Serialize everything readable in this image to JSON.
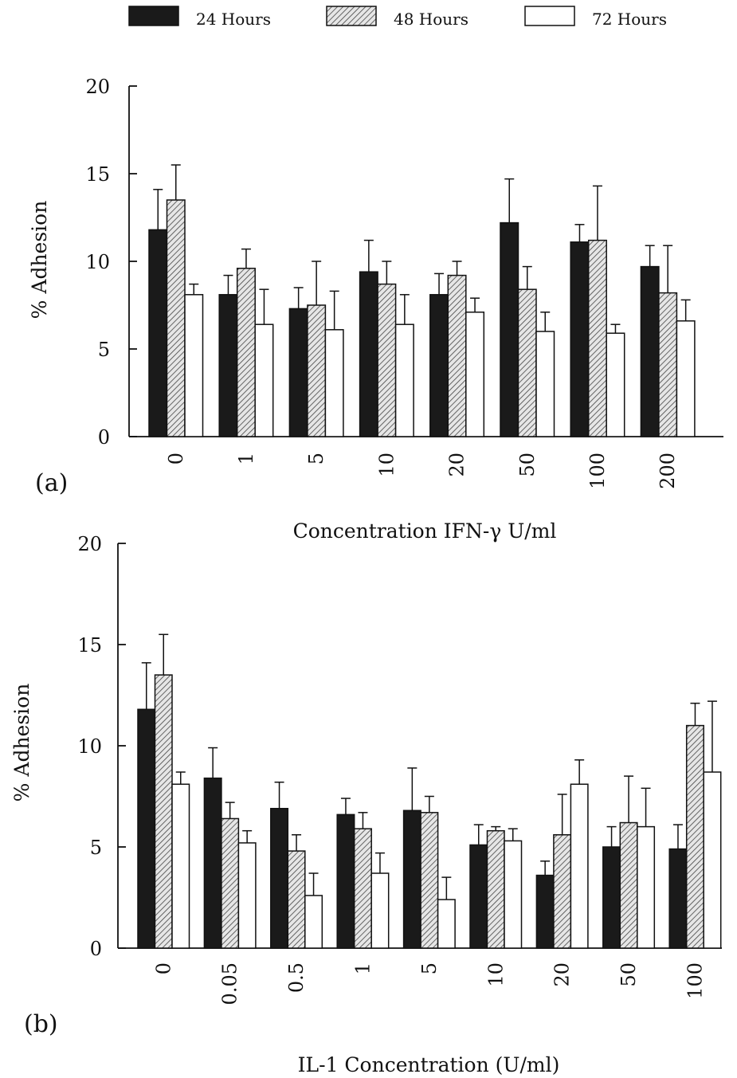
{
  "legend": [
    {
      "label": "24 Hours",
      "fill": "black"
    },
    {
      "label": "48 Hours",
      "fill": "hatched"
    },
    {
      "label": "72 Hours",
      "fill": "white"
    }
  ],
  "colors": {
    "bar_dark": "#1a1a1a",
    "bar_white": "#ffffff",
    "axis": "#111111",
    "hatch_bg": "#e6e6e6"
  },
  "chart_data": [
    {
      "type": "bar",
      "panel_label": "(a)",
      "xlabel": "Concentration IFN-γ U/ml",
      "ylabel": "% Adhesion",
      "ylim": [
        0,
        20
      ],
      "yticks": [
        0,
        5,
        10,
        15,
        20
      ],
      "categories": [
        "0",
        "1",
        "5",
        "10",
        "20",
        "50",
        "100",
        "200"
      ],
      "series": [
        {
          "name": "24 Hours",
          "values": [
            11.8,
            8.1,
            7.3,
            9.4,
            8.1,
            12.2,
            11.1,
            9.7
          ],
          "errors": [
            2.3,
            1.1,
            1.2,
            1.8,
            1.2,
            2.5,
            1.0,
            1.2
          ]
        },
        {
          "name": "48 Hours",
          "values": [
            13.5,
            9.6,
            7.5,
            8.7,
            9.2,
            8.4,
            11.2,
            8.2
          ],
          "errors": [
            2.0,
            1.1,
            2.5,
            1.3,
            0.8,
            1.3,
            3.1,
            2.7
          ]
        },
        {
          "name": "72 Hours",
          "values": [
            8.1,
            6.4,
            6.1,
            6.4,
            7.1,
            6.0,
            5.9,
            6.6
          ],
          "errors": [
            0.6,
            2.0,
            2.2,
            1.7,
            0.8,
            1.1,
            0.5,
            1.2
          ]
        }
      ]
    },
    {
      "type": "bar",
      "panel_label": "(b)",
      "xlabel": "IL-1 Concentration (U/ml)",
      "ylabel": "% Adhesion",
      "ylim": [
        0,
        20
      ],
      "yticks": [
        0,
        5,
        10,
        15,
        20
      ],
      "categories": [
        "0",
        "0.05",
        "0.5",
        "1",
        "5",
        "10",
        "20",
        "50",
        "100"
      ],
      "series": [
        {
          "name": "24 Hours",
          "values": [
            11.8,
            8.4,
            6.9,
            6.6,
            6.8,
            5.1,
            3.6,
            5.0,
            4.9
          ],
          "errors": [
            2.3,
            1.5,
            1.3,
            0.8,
            2.1,
            1.0,
            0.7,
            1.0,
            1.2
          ]
        },
        {
          "name": "48 Hours",
          "values": [
            13.5,
            6.4,
            4.8,
            5.9,
            6.7,
            5.8,
            5.6,
            6.2,
            11.0
          ],
          "errors": [
            2.0,
            0.8,
            0.8,
            0.8,
            0.8,
            0.2,
            2.0,
            2.3,
            1.1
          ]
        },
        {
          "name": "72 Hours",
          "values": [
            8.1,
            5.2,
            2.6,
            3.7,
            2.4,
            5.3,
            8.1,
            6.0,
            8.7
          ],
          "errors": [
            0.6,
            0.6,
            1.1,
            1.0,
            1.1,
            0.6,
            1.2,
            1.9,
            3.5
          ]
        }
      ]
    }
  ]
}
